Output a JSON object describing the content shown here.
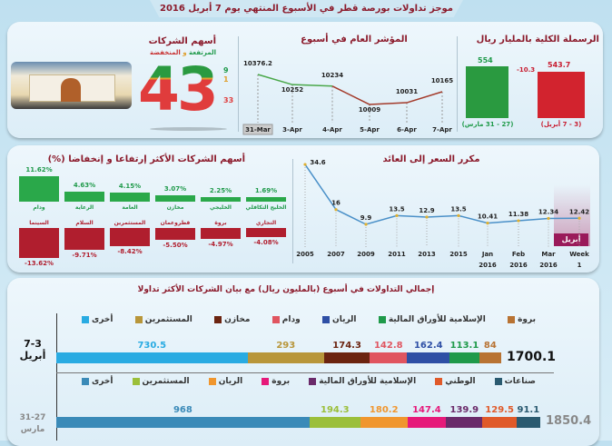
{
  "title": "موجز تداولات بورصة قطر في الأسبوع المنتهي يوم 7 أبريل 2016",
  "colors": {
    "up": "#1f9a4a",
    "down": "#c81e32",
    "header": "#8b1a2b",
    "line": "#4a90c8"
  },
  "companies": {
    "title": "أسهم الشركات",
    "subtitle_up": "المرتفعة",
    "subtitle_and": "و",
    "subtitle_down": "المنخفضة",
    "total": "43",
    "up": "9",
    "unchanged": "1",
    "down": "33"
  },
  "chart_data": [
    {
      "type": "line",
      "title": "المؤشر العام في أسبوع",
      "categories": [
        "31-Mar",
        "3-Apr",
        "4-Apr",
        "5-Apr",
        "6-Apr",
        "7-Apr"
      ],
      "values": [
        10376.2,
        10252,
        10234,
        10009,
        10031,
        10165
      ],
      "labels": [
        "10376.2",
        "10252",
        "10234",
        "10009",
        "10031",
        "10165"
      ]
    },
    {
      "type": "bar",
      "title": "الرسملة الكلية بالمليار ريال",
      "categories": [
        "(27 - 31 مارس)",
        "(3 - 7 أبريل)"
      ],
      "values": [
        554,
        543.7
      ],
      "labels": [
        "554",
        "543.7"
      ],
      "change": "-10.3"
    },
    {
      "type": "bar",
      "title": "أسهم الشركات الأكثر إرتفاعا و إنخفاضا (%)",
      "gainers": {
        "categories": [
          "ودام",
          "الرعاية",
          "العامة",
          "مخازن",
          "الخليجي",
          "الخليج التكافلي"
        ],
        "values": [
          11.62,
          4.63,
          4.15,
          3.07,
          2.25,
          1.69
        ],
        "labels": [
          "11.62%",
          "4.63%",
          "4.15%",
          "3.07%",
          "2.25%",
          "1.69%"
        ]
      },
      "losers": {
        "categories": [
          "السينما",
          "السلام",
          "المستثمرين",
          "قطروعمان",
          "بروة",
          "التجاري"
        ],
        "values": [
          -13.62,
          -9.71,
          -8.42,
          -5.5,
          -4.97,
          -4.08
        ],
        "labels": [
          "-13.62%",
          "-9.71%",
          "-8.42%",
          "-5.50%",
          "-4.97%",
          "-4.08%"
        ]
      }
    },
    {
      "type": "line",
      "title": "مكرر السعر إلى العائد",
      "categories": [
        [
          "2005",
          ""
        ],
        [
          "2007",
          ""
        ],
        [
          "2009",
          ""
        ],
        [
          "2011",
          ""
        ],
        [
          "2013",
          ""
        ],
        [
          "2015",
          ""
        ],
        [
          "Jan",
          "2016"
        ],
        [
          "Feb",
          "2016"
        ],
        [
          "Mar",
          "2016"
        ],
        [
          "Week",
          "1"
        ]
      ],
      "values": [
        34.6,
        16,
        9.9,
        13.5,
        12.9,
        13.5,
        10.41,
        11.38,
        12.34,
        12.42
      ],
      "labels": [
        "34.6",
        "16",
        "9.9",
        "13.5",
        "12.9",
        "13.5",
        "10.41",
        "11.38",
        "12.34",
        "12.42"
      ],
      "highlight": "أبريل"
    },
    {
      "type": "bar",
      "title": "إجمالي التداولات في أسبوع (بالمليون ريال) مع  بيان الشركات الأكثر تداولا",
      "stacked": true,
      "orientation": "horizontal",
      "rows": [
        {
          "label": [
            "7-3",
            "أبريل"
          ],
          "total": "1700.1",
          "segments": [
            {
              "name": "أخرى",
              "value": 730.5,
              "color": "#29abe2"
            },
            {
              "name": "المستثمرين",
              "value": 293,
              "color": "#b8963a"
            },
            {
              "name": "مخازن",
              "value": 174.3,
              "color": "#6b2410"
            },
            {
              "name": "ودام",
              "value": 142.8,
              "color": "#e05560"
            },
            {
              "name": "الريان",
              "value": 162.4,
              "color": "#2e4fa5"
            },
            {
              "name": "الإسلامية للأوراق المالية",
              "value": 113.1,
              "color": "#1f9a4a"
            },
            {
              "name": "بروة",
              "value": 84,
              "color": "#b87333"
            }
          ]
        },
        {
          "label": [
            "31-27",
            "مارس"
          ],
          "total": "1850.4",
          "segments": [
            {
              "name": "أخرى",
              "value": 968,
              "color": "#3a8ab8"
            },
            {
              "name": "المستثمرين",
              "value": 194.3,
              "color": "#9bbf3a"
            },
            {
              "name": "الريان",
              "value": 180.2,
              "color": "#f0962e"
            },
            {
              "name": "بروة",
              "value": 147.4,
              "color": "#e6197a"
            },
            {
              "name": "الإسلامية للأوراق المالية",
              "value": 139.9,
              "color": "#6a2a6a"
            },
            {
              "name": "الوطني",
              "value": 129.5,
              "color": "#e05a2a"
            },
            {
              "name": "صناعات",
              "value": 91.1,
              "color": "#2a5a70"
            }
          ]
        }
      ]
    }
  ]
}
